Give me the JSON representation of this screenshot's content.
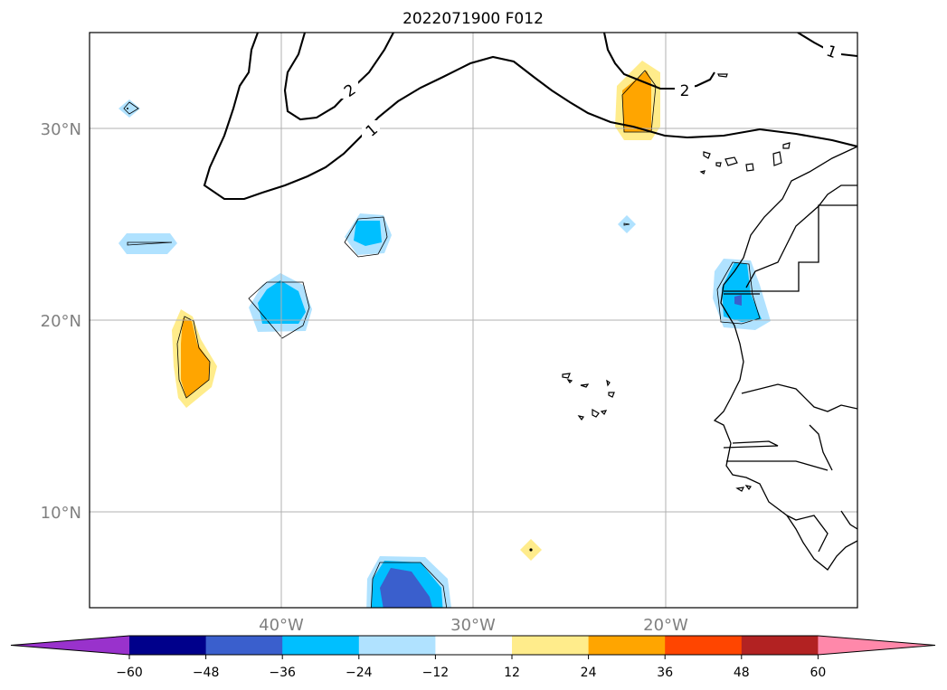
{
  "title": "2022071900 F012",
  "map": {
    "lon_range": [
      -50,
      -10
    ],
    "lat_range": [
      5,
      35
    ],
    "lat_labels": [
      "30°N",
      "20°N",
      "10°N"
    ],
    "lon_labels": [
      "40°W",
      "30°W",
      "20°W"
    ],
    "contour_labels": [
      "2",
      "1",
      "2",
      "1"
    ]
  },
  "colorbar": {
    "ticks": [
      "−60",
      "−48",
      "−36",
      "−24",
      "−12",
      "12",
      "24",
      "36",
      "48",
      "60"
    ],
    "colors": [
      "#9932cc",
      "#00008b",
      "#3a5fcd",
      "#00bfff",
      "#b0e2ff",
      "#ffffff",
      "#ffec8b",
      "#ffa500",
      "#ff4500",
      "#b22222",
      "#ff88aa"
    ]
  }
}
